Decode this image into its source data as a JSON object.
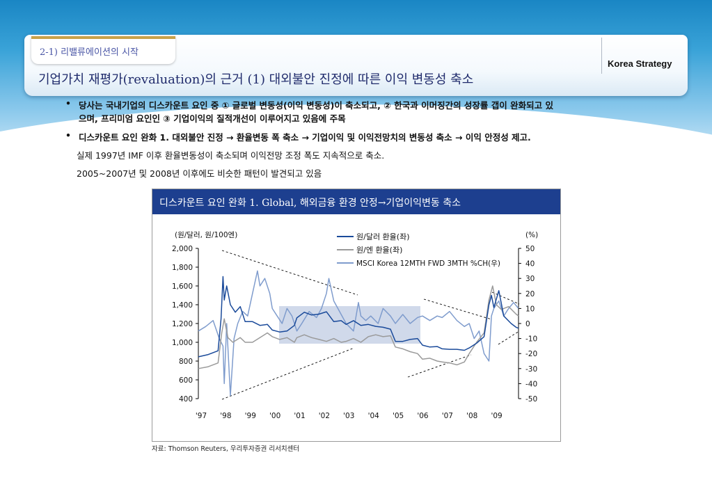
{
  "header": {
    "section": "2-1) 리밸류에이션의 시작",
    "brand": "Korea Strategy",
    "title": "기업가치 재평가(revaluation)의 근거 (1) 대외불안 진정에 따른 이익 변동성 축소"
  },
  "bullets": [
    {
      "marker": "•",
      "lines": [
        "당사는 국내기업의 디스카운트 요인 중 ① 글로벌 변동성(이익 변동성)이 축소되고, ② 한국과 이머징간의 성장률 갭이 완화되고 있",
        "으며, 프리미엄 요인인 ③ 기업이익의 질적개선이 이루어지고 있음에 주목"
      ]
    },
    {
      "marker": "•",
      "lines": [
        "디스카운트 요인 완화 1. 대외불안 진정 → 환율변동 폭 축소 → 기업이익 및 이익전망치의 변동성 축소 → 이익 안정성 제고."
      ]
    }
  ],
  "notes": [
    "실제 1997년 IMF 이후 환율변동성이 축소되며 이익전망 조정 폭도 지속적으로 축소.",
    "2005~2007년 및 2008년 이후에도 비슷한 패턴이 발견되고 있음"
  ],
  "source": "자료: Thomson Reuters, 우리투자증권 리서치센터",
  "colors": {
    "header_bar": "#1d3f8f",
    "won_dollar": "#1a4a9a",
    "won_yen": "#9a9a9a",
    "msci": "#7f9ccd",
    "highlight_box": "#c8d2e6"
  },
  "chart_data": {
    "type": "line",
    "title": "디스카운트 요인 완화 1. Global, 해외금융 환경 안정→기업이익변동 축소",
    "left_axis_label": "(원/달러, 원/100엔)",
    "right_axis_label": "(%)",
    "x_ticks": [
      "'97",
      "'98",
      "'99",
      "'00",
      "'01",
      "'02",
      "'03",
      "'04",
      "'05",
      "'06",
      "'07",
      "'08",
      "'09"
    ],
    "x_range": [
      1997.0,
      2010.0
    ],
    "ylim_left": [
      400,
      2000
    ],
    "ylim_right": [
      -50,
      50
    ],
    "left_ticks": [
      "400",
      "600",
      "800",
      "1,000",
      "1,200",
      "1,400",
      "1,600",
      "1,800",
      "2,000"
    ],
    "right_ticks": [
      "-50",
      "-40",
      "-30",
      "-20",
      "-10",
      "0",
      "10",
      "20",
      "30",
      "40",
      "50"
    ],
    "legend_position": "top-center",
    "series": [
      {
        "name": "원/달러 환율(좌)",
        "axis": "left",
        "color": "#1a4a9a",
        "points": [
          [
            1997.0,
            845
          ],
          [
            1997.4,
            870
          ],
          [
            1997.8,
            910
          ],
          [
            1997.92,
            1250
          ],
          [
            1998.0,
            1700
          ],
          [
            1998.05,
            1450
          ],
          [
            1998.15,
            1600
          ],
          [
            1998.3,
            1400
          ],
          [
            1998.5,
            1320
          ],
          [
            1998.7,
            1380
          ],
          [
            1998.9,
            1220
          ],
          [
            1999.2,
            1220
          ],
          [
            1999.5,
            1180
          ],
          [
            1999.8,
            1190
          ],
          [
            2000.0,
            1130
          ],
          [
            2000.3,
            1110
          ],
          [
            2000.6,
            1120
          ],
          [
            2000.9,
            1180
          ],
          [
            2001.0,
            1260
          ],
          [
            2001.3,
            1320
          ],
          [
            2001.6,
            1290
          ],
          [
            2001.9,
            1300
          ],
          [
            2002.2,
            1325
          ],
          [
            2002.5,
            1220
          ],
          [
            2002.8,
            1230
          ],
          [
            2003.0,
            1190
          ],
          [
            2003.3,
            1230
          ],
          [
            2003.6,
            1180
          ],
          [
            2003.9,
            1190
          ],
          [
            2004.2,
            1170
          ],
          [
            2004.5,
            1160
          ],
          [
            2004.8,
            1140
          ],
          [
            2005.0,
            1010
          ],
          [
            2005.3,
            1010
          ],
          [
            2005.6,
            1030
          ],
          [
            2005.9,
            1040
          ],
          [
            2006.1,
            970
          ],
          [
            2006.4,
            950
          ],
          [
            2006.7,
            955
          ],
          [
            2006.9,
            930
          ],
          [
            2007.2,
            925
          ],
          [
            2007.5,
            925
          ],
          [
            2007.8,
            915
          ],
          [
            2008.0,
            940
          ],
          [
            2008.3,
            990
          ],
          [
            2008.6,
            1060
          ],
          [
            2008.8,
            1400
          ],
          [
            2008.9,
            1500
          ],
          [
            2009.0,
            1370
          ],
          [
            2009.2,
            1550
          ],
          [
            2009.4,
            1280
          ],
          [
            2009.7,
            1200
          ],
          [
            2009.9,
            1160
          ],
          [
            2010.0,
            1150
          ]
        ]
      },
      {
        "name": "원/엔 환율(좌)",
        "axis": "left",
        "color": "#9a9a9a",
        "points": [
          [
            1997.0,
            720
          ],
          [
            1997.4,
            740
          ],
          [
            1997.8,
            780
          ],
          [
            1997.95,
            1100
          ],
          [
            1998.05,
            1250
          ],
          [
            1998.2,
            1050
          ],
          [
            1998.4,
            1000
          ],
          [
            1998.7,
            1050
          ],
          [
            1998.9,
            1000
          ],
          [
            1999.2,
            1000
          ],
          [
            1999.5,
            1050
          ],
          [
            1999.8,
            1100
          ],
          [
            2000.0,
            1060
          ],
          [
            2000.3,
            1030
          ],
          [
            2000.6,
            1050
          ],
          [
            2000.9,
            1000
          ],
          [
            2001.0,
            1050
          ],
          [
            2001.3,
            1080
          ],
          [
            2001.6,
            1050
          ],
          [
            2001.9,
            1030
          ],
          [
            2002.2,
            1010
          ],
          [
            2002.5,
            1040
          ],
          [
            2002.8,
            1000
          ],
          [
            2003.0,
            1010
          ],
          [
            2003.3,
            1040
          ],
          [
            2003.6,
            1000
          ],
          [
            2003.9,
            1060
          ],
          [
            2004.2,
            1080
          ],
          [
            2004.5,
            1060
          ],
          [
            2004.8,
            1070
          ],
          [
            2005.0,
            950
          ],
          [
            2005.3,
            930
          ],
          [
            2005.6,
            900
          ],
          [
            2005.9,
            880
          ],
          [
            2006.1,
            820
          ],
          [
            2006.4,
            830
          ],
          [
            2006.7,
            800
          ],
          [
            2006.9,
            790
          ],
          [
            2007.2,
            780
          ],
          [
            2007.5,
            760
          ],
          [
            2007.8,
            790
          ],
          [
            2008.0,
            880
          ],
          [
            2008.3,
            1000
          ],
          [
            2008.6,
            1100
          ],
          [
            2008.8,
            1450
          ],
          [
            2008.95,
            1600
          ],
          [
            2009.1,
            1400
          ],
          [
            2009.3,
            1350
          ],
          [
            2009.6,
            1380
          ],
          [
            2009.9,
            1300
          ],
          [
            2010.0,
            1280
          ]
        ]
      },
      {
        "name": "MSCI Korea 12MTH FWD 3MTH %CH(우)",
        "axis": "right",
        "color": "#7f9ccd",
        "points": [
          [
            1997.0,
            -5
          ],
          [
            1997.3,
            -2
          ],
          [
            1997.6,
            2
          ],
          [
            1997.85,
            -10
          ],
          [
            1998.0,
            -15
          ],
          [
            1998.05,
            -40
          ],
          [
            1998.15,
            0
          ],
          [
            1998.3,
            -48
          ],
          [
            1998.45,
            -10
          ],
          [
            1998.6,
            0
          ],
          [
            1998.8,
            8
          ],
          [
            1999.0,
            5
          ],
          [
            1999.2,
            20
          ],
          [
            1999.4,
            35
          ],
          [
            1999.5,
            25
          ],
          [
            1999.7,
            30
          ],
          [
            1999.9,
            20
          ],
          [
            2000.0,
            10
          ],
          [
            2000.2,
            5
          ],
          [
            2000.4,
            0
          ],
          [
            2000.6,
            10
          ],
          [
            2000.8,
            5
          ],
          [
            2001.0,
            -5
          ],
          [
            2001.2,
            0
          ],
          [
            2001.5,
            8
          ],
          [
            2001.8,
            4
          ],
          [
            2002.0,
            10
          ],
          [
            2002.2,
            20
          ],
          [
            2002.3,
            30
          ],
          [
            2002.5,
            15
          ],
          [
            2002.8,
            6
          ],
          [
            2003.0,
            0
          ],
          [
            2003.3,
            -5
          ],
          [
            2003.5,
            14
          ],
          [
            2003.6,
            5
          ],
          [
            2003.8,
            2
          ],
          [
            2004.0,
            5
          ],
          [
            2004.3,
            0
          ],
          [
            2004.5,
            10
          ],
          [
            2004.8,
            5
          ],
          [
            2005.0,
            0
          ],
          [
            2005.3,
            6
          ],
          [
            2005.6,
            0
          ],
          [
            2005.9,
            4
          ],
          [
            2006.1,
            5
          ],
          [
            2006.4,
            2
          ],
          [
            2006.7,
            5
          ],
          [
            2006.9,
            4
          ],
          [
            2007.2,
            8
          ],
          [
            2007.5,
            2
          ],
          [
            2007.8,
            -2
          ],
          [
            2008.0,
            0
          ],
          [
            2008.2,
            -10
          ],
          [
            2008.4,
            -5
          ],
          [
            2008.6,
            -20
          ],
          [
            2008.8,
            -25
          ],
          [
            2008.9,
            5
          ],
          [
            2009.0,
            10
          ],
          [
            2009.2,
            15
          ],
          [
            2009.4,
            5
          ],
          [
            2009.6,
            10
          ],
          [
            2009.8,
            14
          ],
          [
            2010.0,
            10
          ]
        ]
      }
    ]
  }
}
